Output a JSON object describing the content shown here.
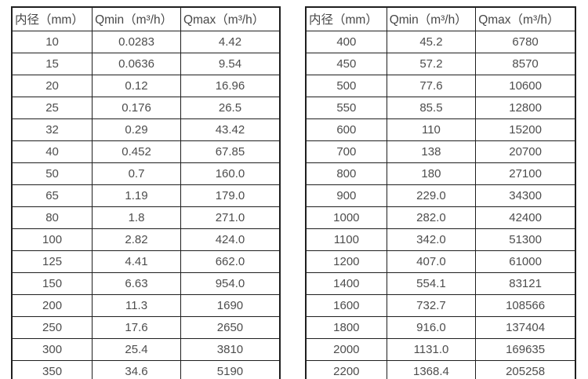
{
  "colors": {
    "background": "#ffffff",
    "border": "#1f1f1f",
    "text": "#4d4d4d"
  },
  "tables": [
    {
      "id": "small-diameter-flow-table",
      "headers": [
        "内径（mm）",
        "Qmin（m³/h）",
        "Qmax（m³/h）"
      ],
      "rows": [
        [
          "10",
          "0.0283",
          "4.42"
        ],
        [
          "15",
          "0.0636",
          "9.54"
        ],
        [
          "20",
          "0.12",
          "16.96"
        ],
        [
          "25",
          "0.176",
          "26.5"
        ],
        [
          "32",
          "0.29",
          "43.42"
        ],
        [
          "40",
          "0.452",
          "67.85"
        ],
        [
          "50",
          "0.7",
          "160.0"
        ],
        [
          "65",
          "1.19",
          "179.0"
        ],
        [
          "80",
          "1.8",
          "271.0"
        ],
        [
          "100",
          "2.82",
          "424.0"
        ],
        [
          "125",
          "4.41",
          "662.0"
        ],
        [
          "150",
          "6.63",
          "954.0"
        ],
        [
          "200",
          "11.3",
          "1690"
        ],
        [
          "250",
          "17.6",
          "2650"
        ],
        [
          "300",
          "25.4",
          "3810"
        ],
        [
          "350",
          "34.6",
          "5190"
        ]
      ]
    },
    {
      "id": "large-diameter-flow-table",
      "headers": [
        "内径（mm）",
        "Qmin（m³/h）",
        "Qmax（m³/h）"
      ],
      "rows": [
        [
          "400",
          "45.2",
          "6780"
        ],
        [
          "450",
          "57.2",
          "8570"
        ],
        [
          "500",
          "77.6",
          "10600"
        ],
        [
          "550",
          "85.5",
          "12800"
        ],
        [
          "600",
          "110",
          "15200"
        ],
        [
          "700",
          "138",
          "20700"
        ],
        [
          "800",
          "180",
          "27100"
        ],
        [
          "900",
          "229.0",
          "34300"
        ],
        [
          "1000",
          "282.0",
          "42400"
        ],
        [
          "1100",
          "342.0",
          "51300"
        ],
        [
          "1200",
          "407.0",
          "61000"
        ],
        [
          "1400",
          "554.1",
          "83121"
        ],
        [
          "1600",
          "732.7",
          "108566"
        ],
        [
          "1800",
          "916.0",
          "137404"
        ],
        [
          "2000",
          "1131.0",
          "169635"
        ],
        [
          "2200",
          "1368.4",
          "205258"
        ]
      ]
    }
  ]
}
